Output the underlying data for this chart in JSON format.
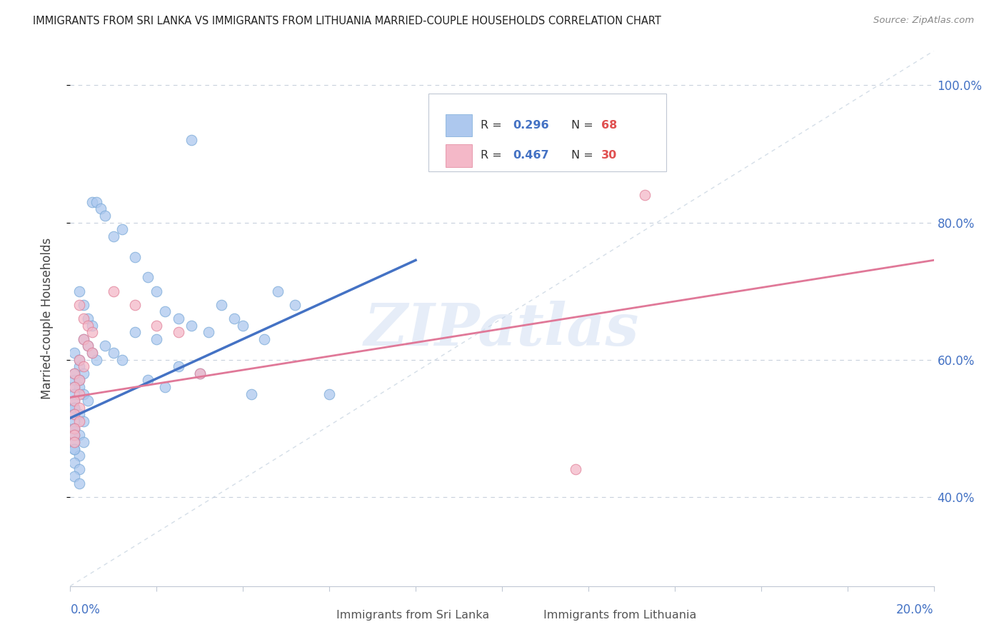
{
  "title": "IMMIGRANTS FROM SRI LANKA VS IMMIGRANTS FROM LITHUANIA MARRIED-COUPLE HOUSEHOLDS CORRELATION CHART",
  "source": "Source: ZipAtlas.com",
  "ylabel": "Married-couple Households",
  "series1_color": "#adc8ee",
  "series1_edge": "#7aaad8",
  "series2_color": "#f4b8c8",
  "series2_edge": "#e08098",
  "series1_label": "Immigrants from Sri Lanka",
  "series2_label": "Immigrants from Lithuania",
  "R1": 0.296,
  "N1": 68,
  "R2": 0.467,
  "N2": 30,
  "watermark": "ZIPatlas",
  "watermark_color": "#c8d8f0",
  "xlim": [
    0.0,
    0.2
  ],
  "ylim": [
    0.27,
    1.05
  ],
  "yticks": [
    0.4,
    0.6,
    0.8,
    1.0
  ],
  "ytick_labels": [
    "40.0%",
    "60.0%",
    "80.0%",
    "100.0%"
  ],
  "background_color": "#ffffff",
  "grid_color": "#c8d0dc",
  "trend1_color": "#4472c4",
  "trend2_color": "#e07898",
  "diag_color": "#b8c8d8",
  "legend_R_color": "#4472c4",
  "legend_N_color": "#e05050",
  "axis_color": "#4472c4",
  "spine_color": "#c0c8d4"
}
